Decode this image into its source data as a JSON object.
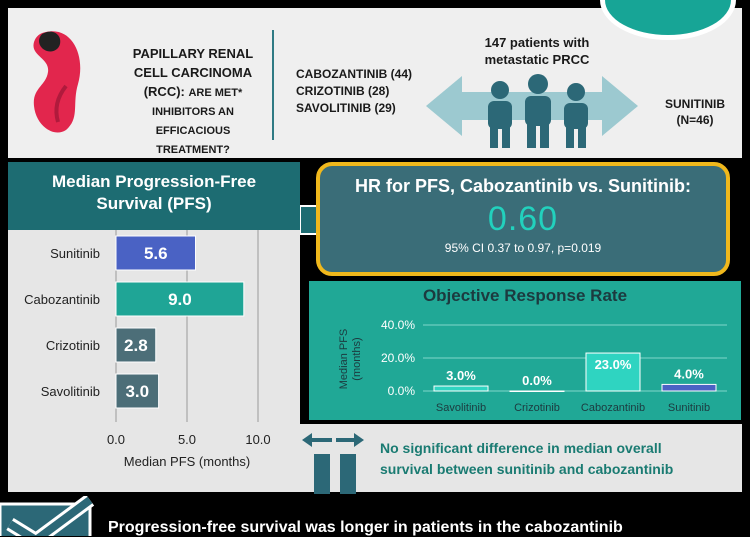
{
  "hero": {
    "question_line1": "PAPILLARY RENAL",
    "question_line2": "CELL CARCINOMA",
    "question_line3a": "(RCC): ",
    "question_line3b": "ARE MET*",
    "question_line4": "INHIBITORS AN",
    "question_line5": "EFFICACIOUS TREATMENT?",
    "drug1": "CABOZANTINIB (44)",
    "drug2": "CRIZOTINIB (28)",
    "drug3": "SAVOLITINIB (29)",
    "patients_line1": "147 patients with",
    "patients_line2": "metastatic PRCC",
    "control_line1": "SUNITINIB",
    "control_line2": "(N=46)",
    "icons": [
      "kidney-icon",
      "people-icon",
      "double-arrow-icon"
    ]
  },
  "hr": {
    "title": "HR for PFS, Cabozantinib vs. Sunitinib:",
    "value": "0.60",
    "ci": "95% CI 0.37 to 0.97, p=0.019"
  },
  "os": {
    "line1": "No significant difference in median overall",
    "line2": "survival between sunitinib and cabozantinib"
  },
  "conclusion": "Progression-free survival was longer in patients in the cabozantinib",
  "colors": {
    "teal_dark": "#1d6c72",
    "teal": "#20a896",
    "slate": "#3a6d78",
    "gold": "#f0b81c",
    "sunitinib_bar": "#4a62c4",
    "cabozantinib_bar": "#1fa596",
    "met_bar": "#4c6e78"
  },
  "chart_data": [
    {
      "type": "bar",
      "orientation": "horizontal",
      "title_line1": "Median Progression-Free",
      "title_line2": "Survival (PFS)",
      "categories": [
        "Sunitinib",
        "Cabozantinib",
        "Crizotinib",
        "Savolitinib"
      ],
      "values": [
        5.6,
        9.0,
        2.8,
        3.0
      ],
      "labels": [
        "5.6",
        "9.0",
        "2.8",
        "3.0"
      ],
      "xlabel": "Median PFS (months)",
      "xlim": [
        0,
        10
      ],
      "xticks": [
        "0.0",
        "5.0",
        "10.0"
      ],
      "grid": true
    },
    {
      "type": "bar",
      "orientation": "vertical",
      "title": "Objective Response Rate",
      "categories": [
        "Savolitinib",
        "Crizotinib",
        "Cabozantinib",
        "Sunitinib"
      ],
      "values": [
        3.0,
        0.0,
        23.0,
        4.0
      ],
      "labels": [
        "3.0%",
        "0.0%",
        "23.0%",
        "4.0%"
      ],
      "ylabel_line1": "Median PFS",
      "ylabel_line2": "(months)",
      "ylim": [
        0,
        40
      ],
      "yticks": [
        "0.0%",
        "20.0%",
        "40.0%"
      ],
      "grid": true
    }
  ]
}
